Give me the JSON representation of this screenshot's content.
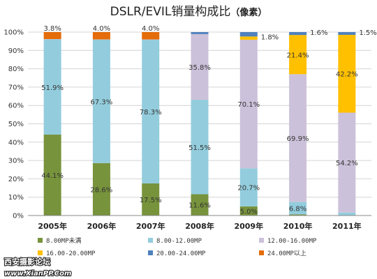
{
  "watermark": {
    "line1": "西安摄影论坛",
    "line2": "www.XianPP.Com"
  },
  "chart_data": {
    "type": "bar",
    "stacked": true,
    "percent": true,
    "title": "DSLR/EVIL销量构成比",
    "subtitle": "（像素）",
    "xlabel": "",
    "ylabel": "",
    "ylim": [
      0,
      100
    ],
    "y_ticks": [
      "0%",
      "10%",
      "20%",
      "30%",
      "40%",
      "50%",
      "60%",
      "70%",
      "80%",
      "90%",
      "100%"
    ],
    "grid": true,
    "legend_position": "bottom",
    "categories": [
      "2005年",
      "2006年",
      "2007年",
      "2008年",
      "2009年",
      "2010年",
      "2011年"
    ],
    "series": [
      {
        "name": "8.00MP未满",
        "color": "#77933c",
        "values": [
          44.1,
          28.6,
          17.5,
          11.6,
          5.0,
          0.6,
          0.1
        ],
        "labels": [
          "44.1%",
          "28.6%",
          "17.5%",
          "11.6%",
          "5.0%",
          "",
          ""
        ]
      },
      {
        "name": "8.00-12.00MP",
        "color": "#93cddd",
        "values": [
          51.9,
          67.3,
          78.3,
          51.5,
          20.7,
          6.8,
          1.5
        ],
        "labels": [
          "51.9%",
          "67.3%",
          "78.3%",
          "51.5%",
          "20.7%",
          "6.8%",
          ""
        ]
      },
      {
        "name": "12.00-16.00MP",
        "color": "#ccc1da",
        "values": [
          0.2,
          0.1,
          0.2,
          35.8,
          70.1,
          69.9,
          54.2
        ],
        "labels": [
          "",
          "",
          "",
          "35.8%",
          "70.1%",
          "69.9%",
          "54.2%"
        ]
      },
      {
        "name": "16.00-20.00MP",
        "color": "#ffc000",
        "values": [
          0,
          0,
          0,
          0,
          1.8,
          21.4,
          42.2
        ],
        "labels": [
          "",
          "",
          "",
          "",
          "1.8%",
          "21.4%",
          "42.2%"
        ]
      },
      {
        "name": "20.00-24.00MP",
        "color": "#4f81bd",
        "values": [
          0,
          0,
          0,
          1.1,
          2.4,
          1.6,
          1.5
        ],
        "labels": [
          "",
          "",
          "",
          "",
          "",
          "1.6%",
          "1.5%"
        ]
      },
      {
        "name": "24.00MP以上",
        "color": "#e46c0a",
        "values": [
          3.8,
          4.0,
          4.0,
          0,
          0,
          0,
          0
        ],
        "labels": [
          "3.8%",
          "4.0%",
          "4.0%",
          "",
          "",
          "",
          ""
        ]
      }
    ]
  }
}
